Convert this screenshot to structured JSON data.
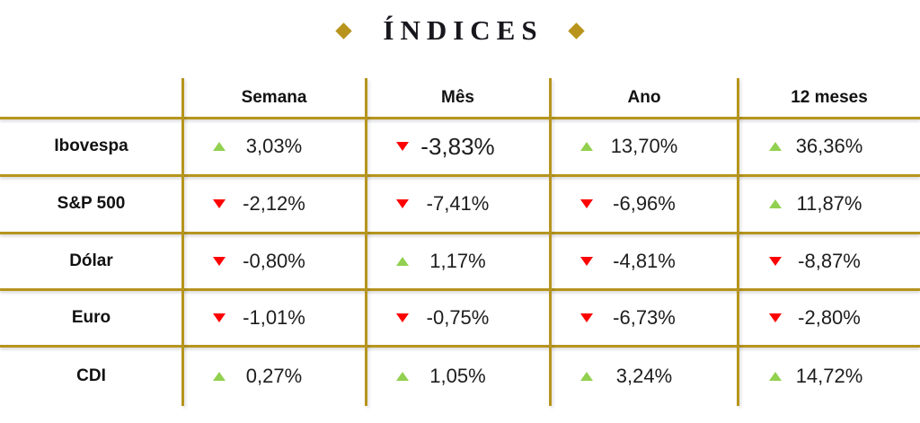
{
  "title": {
    "text": "ÍNDICES"
  },
  "colors": {
    "gold_line": "#b6951e",
    "diamond": "#b8941c",
    "up_triangle": "#92d050",
    "down_triangle": "#fe0000",
    "text": "#1b1b1b"
  },
  "table": {
    "columns": [
      "Semana",
      "Mês",
      "Ano",
      "12 meses"
    ],
    "rows": [
      {
        "label": "Ibovespa",
        "cells": [
          {
            "direction": "up",
            "value": "3,03%"
          },
          {
            "direction": "down",
            "value": "-3,83%",
            "large": true
          },
          {
            "direction": "up",
            "value": "13,70%"
          },
          {
            "direction": "up",
            "value": "36,36%"
          }
        ]
      },
      {
        "label": "S&P 500",
        "cells": [
          {
            "direction": "down",
            "value": "-2,12%"
          },
          {
            "direction": "down",
            "value": "-7,41%"
          },
          {
            "direction": "down",
            "value": "-6,96%"
          },
          {
            "direction": "up",
            "value": "11,87%"
          }
        ]
      },
      {
        "label": "Dólar",
        "cells": [
          {
            "direction": "down",
            "value": "-0,80%"
          },
          {
            "direction": "up",
            "value": "1,17%"
          },
          {
            "direction": "down",
            "value": "-4,81%"
          },
          {
            "direction": "down",
            "value": "-8,87%"
          }
        ]
      },
      {
        "label": "Euro",
        "cells": [
          {
            "direction": "down",
            "value": "-1,01%"
          },
          {
            "direction": "down",
            "value": "-0,75%"
          },
          {
            "direction": "down",
            "value": "-6,73%"
          },
          {
            "direction": "down",
            "value": "-2,80%"
          }
        ]
      },
      {
        "label": "CDI",
        "cells": [
          {
            "direction": "up",
            "value": "0,27%"
          },
          {
            "direction": "up",
            "value": "1,05%"
          },
          {
            "direction": "up",
            "value": "3,24%"
          },
          {
            "direction": "up",
            "value": "14,72%"
          }
        ]
      }
    ]
  },
  "chart_data": {
    "type": "table",
    "title": "ÍNDICES",
    "columns": [
      "",
      "Semana",
      "Mês",
      "Ano",
      "12 meses"
    ],
    "rows": [
      [
        "Ibovespa",
        "3,03%",
        "-3,83%",
        "13,70%",
        "36,36%"
      ],
      [
        "S&P 500",
        "-2,12%",
        "-7,41%",
        "-6,96%",
        "11,87%"
      ],
      [
        "Dólar",
        "-0,80%",
        "1,17%",
        "-4,81%",
        "-8,87%"
      ],
      [
        "Euro",
        "-1,01%",
        "-0,75%",
        "-6,73%",
        "-2,80%"
      ],
      [
        "CDI",
        "0,27%",
        "1,05%",
        "3,24%",
        "14,72%"
      ]
    ],
    "values_numeric_percent": {
      "Ibovespa": [
        3.03,
        -3.83,
        13.7,
        36.36
      ],
      "S&P 500": [
        -2.12,
        -7.41,
        -6.96,
        11.87
      ],
      "Dólar": [
        -0.8,
        1.17,
        -4.81,
        -8.87
      ],
      "Euro": [
        -1.01,
        -0.75,
        -6.73,
        -2.8
      ],
      "CDI": [
        0.27,
        1.05,
        3.24,
        14.72
      ]
    },
    "direction_markers": {
      "Ibovespa": [
        "up",
        "down",
        "up",
        "up"
      ],
      "S&P 500": [
        "down",
        "down",
        "down",
        "up"
      ],
      "Dólar": [
        "down",
        "up",
        "down",
        "down"
      ],
      "Euro": [
        "down",
        "down",
        "down",
        "down"
      ],
      "CDI": [
        "up",
        "up",
        "up",
        "up"
      ]
    }
  }
}
